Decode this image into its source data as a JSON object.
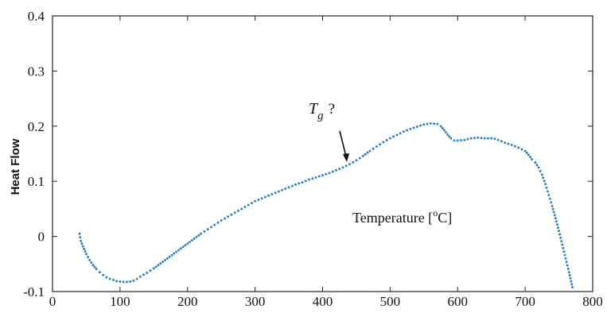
{
  "chart_data": {
    "type": "scatter",
    "title": "",
    "xlabel": "Temperature [",
    "xlabel_sup": "o",
    "xlabel_end": "C]",
    "ylabel": "Heat Flow",
    "xlim": [
      0,
      800
    ],
    "ylim": [
      -0.1,
      0.4
    ],
    "xticks": [
      0,
      100,
      200,
      300,
      400,
      500,
      600,
      700,
      800
    ],
    "yticks": [
      -0.1,
      0,
      0.1,
      0.2,
      0.3,
      0.4
    ],
    "xtick_labels": [
      "0",
      "100",
      "200",
      "300",
      "400",
      "500",
      "600",
      "700",
      "800"
    ],
    "ytick_labels": [
      "-0.1",
      "0",
      "0.1",
      "0.2",
      "0.3",
      "0.4"
    ],
    "grid": false,
    "marker_color": "#2a7fc2",
    "annotation": {
      "text_main": "T",
      "text_sub": "g",
      "text_q": "?",
      "x": 435,
      "y": 0.128
    },
    "curve": [
      [
        40,
        0.005
      ],
      [
        42,
        -0.008
      ],
      [
        45,
        -0.018
      ],
      [
        50,
        -0.032
      ],
      [
        55,
        -0.043
      ],
      [
        60,
        -0.052
      ],
      [
        65,
        -0.059
      ],
      [
        70,
        -0.065
      ],
      [
        75,
        -0.07
      ],
      [
        80,
        -0.074
      ],
      [
        85,
        -0.077
      ],
      [
        90,
        -0.079
      ],
      [
        95,
        -0.081
      ],
      [
        100,
        -0.082
      ],
      [
        105,
        -0.0825
      ],
      [
        110,
        -0.0825
      ],
      [
        115,
        -0.082
      ],
      [
        120,
        -0.08
      ],
      [
        125,
        -0.077
      ],
      [
        130,
        -0.073
      ],
      [
        140,
        -0.066
      ],
      [
        150,
        -0.058
      ],
      [
        160,
        -0.049
      ],
      [
        170,
        -0.04
      ],
      [
        180,
        -0.031
      ],
      [
        190,
        -0.022
      ],
      [
        200,
        -0.013
      ],
      [
        210,
        -0.004
      ],
      [
        220,
        0.005
      ],
      [
        230,
        0.013
      ],
      [
        240,
        0.021
      ],
      [
        250,
        0.029
      ],
      [
        260,
        0.036
      ],
      [
        270,
        0.043
      ],
      [
        280,
        0.05
      ],
      [
        290,
        0.057
      ],
      [
        300,
        0.064
      ],
      [
        310,
        0.069
      ],
      [
        320,
        0.074
      ],
      [
        330,
        0.079
      ],
      [
        340,
        0.084
      ],
      [
        350,
        0.089
      ],
      [
        360,
        0.094
      ],
      [
        370,
        0.098
      ],
      [
        380,
        0.103
      ],
      [
        390,
        0.107
      ],
      [
        400,
        0.111
      ],
      [
        410,
        0.115
      ],
      [
        420,
        0.12
      ],
      [
        430,
        0.125
      ],
      [
        440,
        0.131
      ],
      [
        450,
        0.138
      ],
      [
        460,
        0.146
      ],
      [
        470,
        0.155
      ],
      [
        480,
        0.163
      ],
      [
        490,
        0.171
      ],
      [
        500,
        0.178
      ],
      [
        510,
        0.184
      ],
      [
        520,
        0.19
      ],
      [
        530,
        0.195
      ],
      [
        540,
        0.199
      ],
      [
        550,
        0.203
      ],
      [
        560,
        0.205
      ],
      [
        570,
        0.204
      ],
      [
        575,
        0.2
      ],
      [
        580,
        0.193
      ],
      [
        585,
        0.185
      ],
      [
        590,
        0.178
      ],
      [
        595,
        0.174
      ],
      [
        600,
        0.174
      ],
      [
        610,
        0.175
      ],
      [
        620,
        0.178
      ],
      [
        630,
        0.179
      ],
      [
        640,
        0.178
      ],
      [
        650,
        0.178
      ],
      [
        655,
        0.177
      ],
      [
        660,
        0.175
      ],
      [
        670,
        0.17
      ],
      [
        680,
        0.166
      ],
      [
        690,
        0.161
      ],
      [
        700,
        0.155
      ],
      [
        705,
        0.148
      ],
      [
        710,
        0.14
      ],
      [
        715,
        0.134
      ],
      [
        720,
        0.125
      ],
      [
        725,
        0.112
      ],
      [
        730,
        0.095
      ],
      [
        735,
        0.075
      ],
      [
        740,
        0.055
      ],
      [
        745,
        0.033
      ],
      [
        750,
        0.01
      ],
      [
        755,
        -0.015
      ],
      [
        760,
        -0.04
      ],
      [
        765,
        -0.065
      ],
      [
        770,
        -0.092
      ]
    ]
  }
}
